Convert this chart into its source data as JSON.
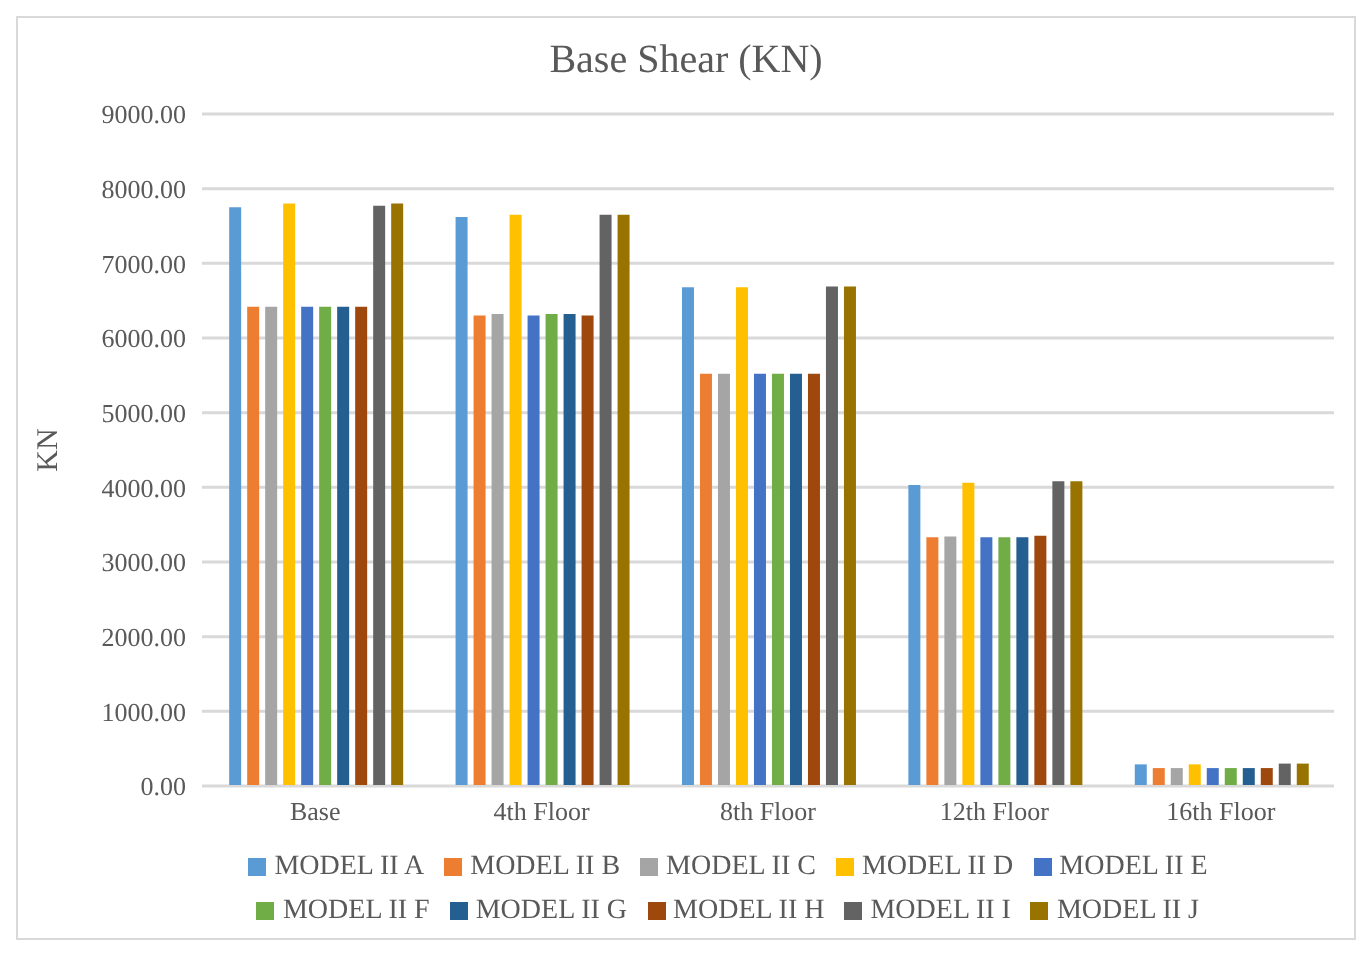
{
  "chart_data": {
    "type": "bar",
    "title": "Base Shear (KN)",
    "ylabel": "KN",
    "categories": [
      "Base",
      "4th Floor",
      "8th Floor",
      "12th Floor",
      "16th Floor"
    ],
    "series": [
      {
        "name": "MODEL II A",
        "color": "#5b9bd5",
        "values": [
          7750,
          7620,
          6680,
          4030,
          290
        ]
      },
      {
        "name": "MODEL II B",
        "color": "#ed7d31",
        "values": [
          6420,
          6300,
          5520,
          3330,
          240
        ]
      },
      {
        "name": "MODEL II C",
        "color": "#a5a5a5",
        "values": [
          6420,
          6320,
          5520,
          3340,
          240
        ]
      },
      {
        "name": "MODEL II D",
        "color": "#ffc000",
        "values": [
          7800,
          7650,
          6680,
          4060,
          290
        ]
      },
      {
        "name": "MODEL II E",
        "color": "#4472c4",
        "values": [
          6420,
          6300,
          5520,
          3330,
          240
        ]
      },
      {
        "name": "MODEL II F",
        "color": "#70ad47",
        "values": [
          6420,
          6320,
          5520,
          3330,
          240
        ]
      },
      {
        "name": "MODEL II G",
        "color": "#255e91",
        "values": [
          6420,
          6320,
          5520,
          3330,
          240
        ]
      },
      {
        "name": "MODEL II H",
        "color": "#9e480e",
        "values": [
          6420,
          6300,
          5520,
          3350,
          240
        ]
      },
      {
        "name": "MODEL II I",
        "color": "#636363",
        "values": [
          7770,
          7650,
          6690,
          4080,
          300
        ]
      },
      {
        "name": "MODEL II J",
        "color": "#997300",
        "values": [
          7800,
          7650,
          6690,
          4080,
          300
        ]
      }
    ],
    "ylim": [
      0,
      9000
    ],
    "yticks": [
      {
        "value": 0,
        "label": "0.00"
      },
      {
        "value": 1000,
        "label": "1000.00"
      },
      {
        "value": 2000,
        "label": "2000.00"
      },
      {
        "value": 3000,
        "label": "3000.00"
      },
      {
        "value": 4000,
        "label": "4000.00"
      },
      {
        "value": 5000,
        "label": "5000.00"
      },
      {
        "value": 6000,
        "label": "6000.00"
      },
      {
        "value": 7000,
        "label": "7000.00"
      },
      {
        "value": 8000,
        "label": "8000.00"
      },
      {
        "value": 9000,
        "label": "9000.00"
      }
    ],
    "grid": "y",
    "legend": "bottom"
  }
}
